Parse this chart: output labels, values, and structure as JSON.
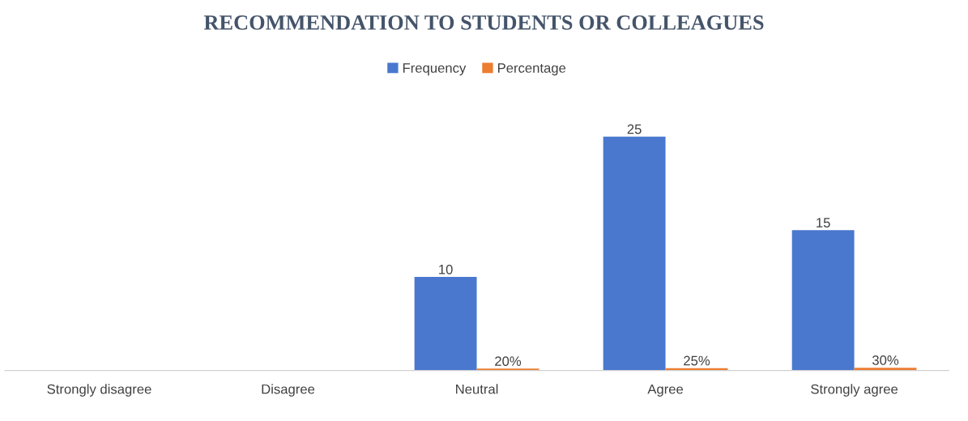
{
  "chart_data": {
    "type": "bar",
    "title": "RECOMMENDATION TO STUDENTS OR COLLEAGUES",
    "categories": [
      "Strongly disagree",
      "Disagree",
      "Neutral",
      "Agree",
      "Strongly agree"
    ],
    "series": [
      {
        "name": "Frequency",
        "color": "#4a78cf",
        "values": [
          null,
          null,
          10,
          25,
          15
        ],
        "value_labels": [
          null,
          null,
          "10",
          "25",
          "15"
        ]
      },
      {
        "name": "Percentage",
        "color": "#ed7d31",
        "values": [
          null,
          null,
          0.2,
          0.25,
          0.3
        ],
        "value_labels": [
          null,
          null,
          "20%",
          "25%",
          "30%"
        ]
      }
    ],
    "legend": "top",
    "grid": false
  }
}
